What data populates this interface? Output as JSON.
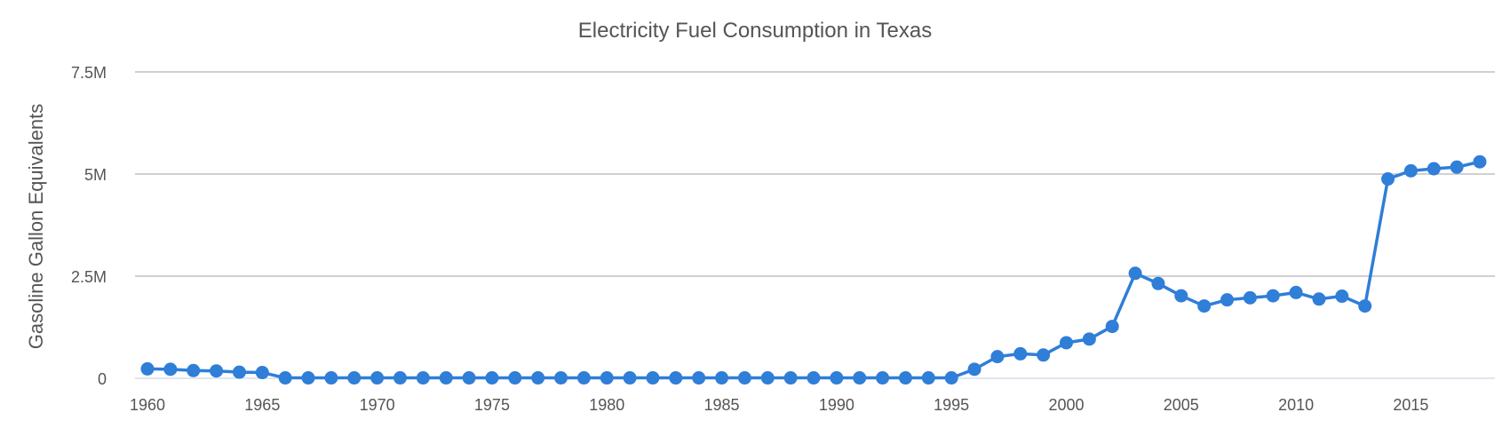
{
  "chart_data": {
    "type": "line",
    "title": "Electricity Fuel Consumption in Texas",
    "xlabel": "",
    "ylabel": "Gasoline Gallon Equivalents",
    "xlim": [
      1960,
      2018
    ],
    "ylim": [
      0,
      7500000
    ],
    "x_ticks": [
      1960,
      1965,
      1970,
      1975,
      1980,
      1985,
      1990,
      1995,
      2000,
      2005,
      2010,
      2015
    ],
    "x_tick_labels": [
      "1960",
      "1965",
      "1970",
      "1975",
      "1980",
      "1985",
      "1990",
      "1995",
      "2000",
      "2005",
      "2010",
      "2015"
    ],
    "y_ticks": [
      0,
      2500000,
      5000000,
      7500000
    ],
    "y_tick_labels": [
      "0",
      "2.5M",
      "5M",
      "7.5M"
    ],
    "grid": true,
    "colors": {
      "series": "#2f7ed8",
      "grid": "#b5b5b5",
      "text": "#555555"
    },
    "series": [
      {
        "x": [
          1960,
          1961,
          1962,
          1963,
          1964,
          1965,
          1966,
          1967,
          1968,
          1969,
          1970,
          1971,
          1972,
          1973,
          1974,
          1975,
          1976,
          1977,
          1978,
          1979,
          1980,
          1981,
          1982,
          1983,
          1984,
          1985,
          1986,
          1987,
          1988,
          1989,
          1990,
          1991,
          1992,
          1993,
          1994,
          1995,
          1996,
          1997,
          1998,
          1999,
          2000,
          2001,
          2002,
          2003,
          2004,
          2005,
          2006,
          2007,
          2008,
          2009,
          2010,
          2011,
          2012,
          2013,
          2014,
          2015,
          2016,
          2017,
          2018
        ],
        "values": [
          230000,
          220000,
          190000,
          180000,
          150000,
          140000,
          10000,
          10000,
          10000,
          10000,
          10000,
          10000,
          10000,
          10000,
          10000,
          10000,
          10000,
          10000,
          10000,
          10000,
          10000,
          10000,
          10000,
          10000,
          10000,
          10000,
          10000,
          10000,
          10000,
          10000,
          10000,
          10000,
          10000,
          10000,
          10000,
          10000,
          220000,
          530000,
          600000,
          570000,
          870000,
          960000,
          1270000,
          2570000,
          2320000,
          2020000,
          1770000,
          1920000,
          1970000,
          2020000,
          2100000,
          1940000,
          2010000,
          1770000,
          4880000,
          5080000,
          5130000,
          5170000,
          5300000
        ]
      }
    ]
  }
}
